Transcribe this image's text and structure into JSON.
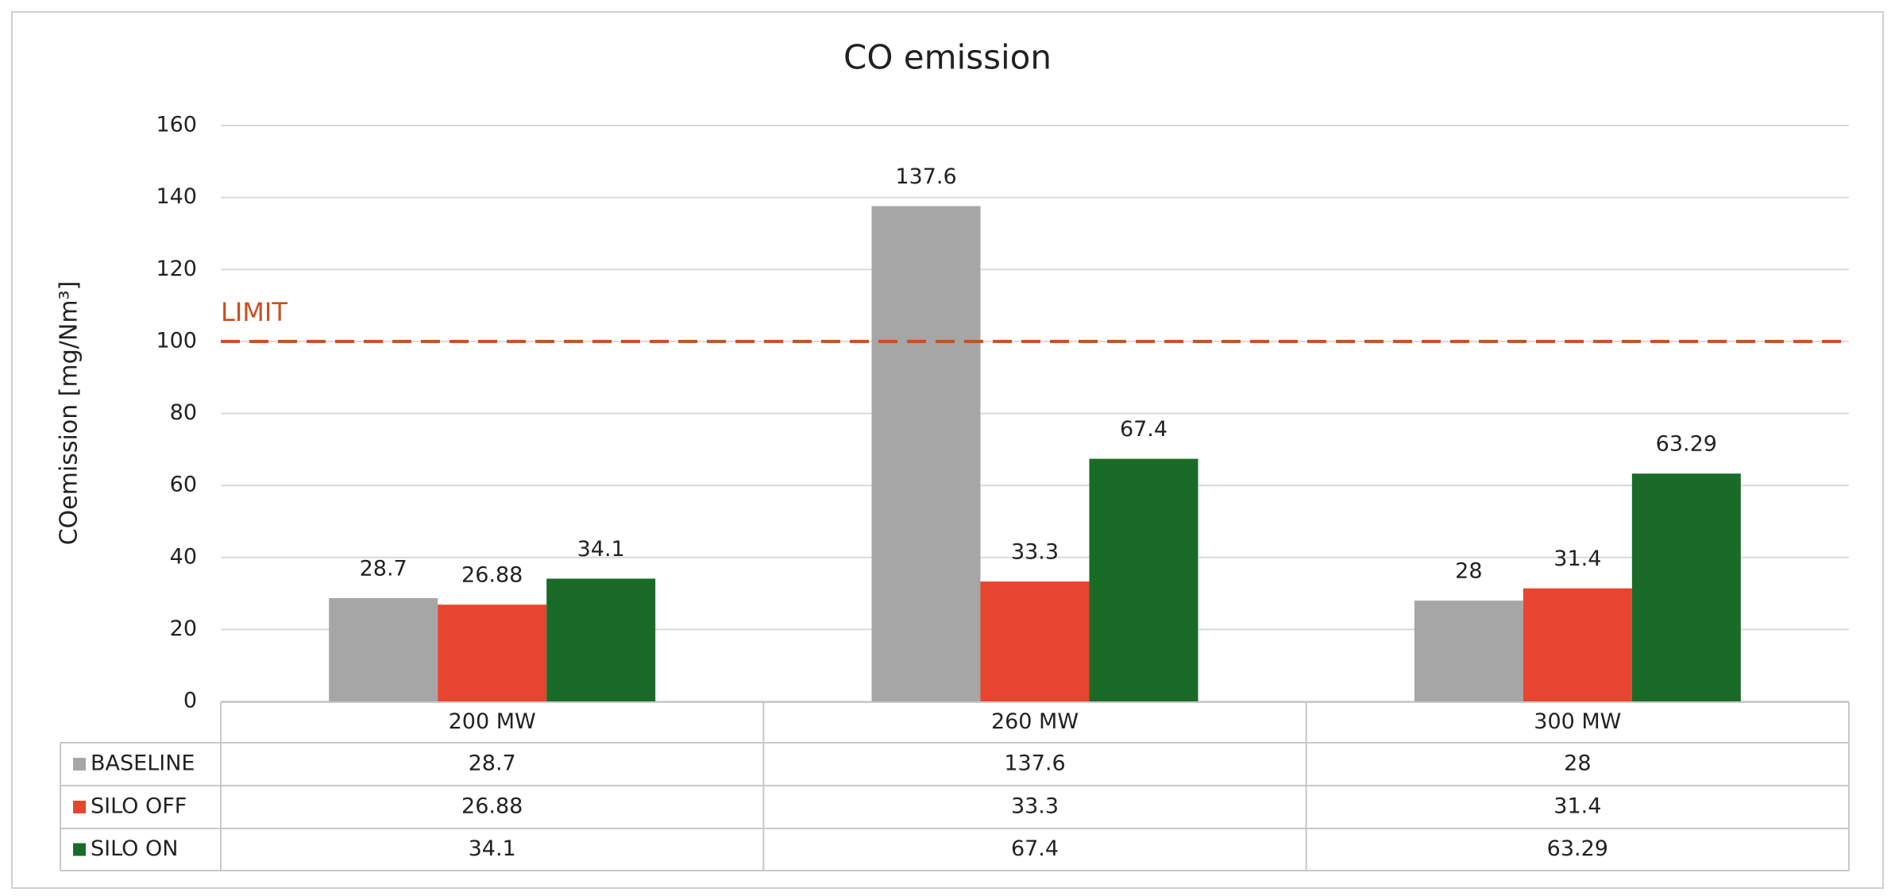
{
  "chart_data": {
    "type": "bar",
    "title": "CO emission",
    "y_label": "COemission [mg/Nm³]",
    "categories": [
      "200 MW",
      "260 MW",
      "300 MW"
    ],
    "series": [
      {
        "name": "BASELINE",
        "color": "#a6a6a6",
        "values": [
          28.7,
          137.6,
          28
        ]
      },
      {
        "name": "SILO OFF",
        "color": "#e84530",
        "values": [
          26.88,
          33.3,
          31.4
        ]
      },
      {
        "name": "SILO ON",
        "color": "#1a6b28",
        "values": [
          34.1,
          67.4,
          63.29
        ]
      }
    ],
    "ylim": [
      0,
      160
    ],
    "yticks": [
      0,
      20,
      40,
      60,
      80,
      100,
      120,
      140,
      160
    ],
    "grid": true,
    "limit": {
      "label": "LIMIT",
      "value": 100,
      "color": "#c8501e"
    }
  }
}
